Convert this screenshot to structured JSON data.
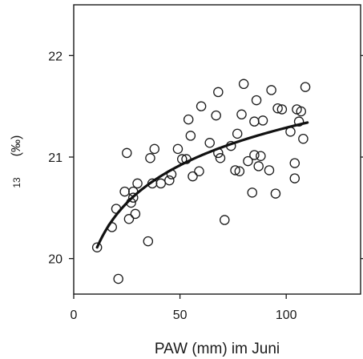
{
  "chart_data": {
    "type": "scatter",
    "title": "",
    "xlabel": "PAW (mm) im Juni",
    "ylabel_parts": {
      "superscript": "13",
      "unit": "(‰)"
    },
    "xlim": [
      0,
      135
    ],
    "ylim": [
      19.65,
      22.5
    ],
    "x_ticks": [
      0,
      50,
      100
    ],
    "y_ticks": [
      20,
      21,
      22
    ],
    "x_tick_labels": [
      "0",
      "50",
      "100"
    ],
    "y_tick_labels": [
      "20",
      "21",
      "22"
    ],
    "grid": false,
    "legend": "none",
    "colors": {
      "marker_stroke": "#1a1a1a",
      "fit_line": "#111111",
      "axis": "#1a1a1a"
    },
    "points": [
      [
        11,
        20.11
      ],
      [
        18,
        20.31
      ],
      [
        20,
        20.49
      ],
      [
        21,
        19.8
      ],
      [
        24,
        20.66
      ],
      [
        25,
        21.04
      ],
      [
        26,
        20.39
      ],
      [
        27,
        20.55
      ],
      [
        28,
        20.6
      ],
      [
        28,
        20.66
      ],
      [
        29,
        20.44
      ],
      [
        30,
        20.74
      ],
      [
        35,
        20.17
      ],
      [
        36,
        20.99
      ],
      [
        37,
        20.74
      ],
      [
        38,
        21.08
      ],
      [
        41,
        20.74
      ],
      [
        45,
        20.77
      ],
      [
        46,
        20.83
      ],
      [
        49,
        21.08
      ],
      [
        51,
        20.98
      ],
      [
        53,
        20.98
      ],
      [
        54,
        21.37
      ],
      [
        55,
        21.21
      ],
      [
        56,
        20.81
      ],
      [
        59,
        20.86
      ],
      [
        60,
        21.5
      ],
      [
        64,
        21.14
      ],
      [
        67,
        21.41
      ],
      [
        68,
        21.64
      ],
      [
        68,
        21.04
      ],
      [
        69,
        20.99
      ],
      [
        71,
        20.38
      ],
      [
        74,
        21.11
      ],
      [
        76,
        20.87
      ],
      [
        77,
        21.23
      ],
      [
        78,
        20.86
      ],
      [
        79,
        21.42
      ],
      [
        80,
        21.72
      ],
      [
        82,
        20.96
      ],
      [
        84,
        20.65
      ],
      [
        85,
        21.02
      ],
      [
        85,
        21.35
      ],
      [
        86,
        21.56
      ],
      [
        87,
        20.91
      ],
      [
        88,
        21.01
      ],
      [
        89,
        21.36
      ],
      [
        92,
        20.87
      ],
      [
        93,
        21.66
      ],
      [
        95,
        20.64
      ],
      [
        96,
        21.48
      ],
      [
        98,
        21.47
      ],
      [
        102,
        21.25
      ],
      [
        104,
        20.94
      ],
      [
        104,
        20.79
      ],
      [
        105,
        21.47
      ],
      [
        106,
        21.35
      ],
      [
        107,
        21.45
      ],
      [
        108,
        21.18
      ],
      [
        109,
        21.69
      ]
    ],
    "fit_curve": {
      "type": "logarithmic",
      "x_range": [
        11,
        110
      ],
      "samples": [
        [
          11,
          20.11
        ],
        [
          15,
          20.32
        ],
        [
          20,
          20.52
        ],
        [
          30,
          20.75
        ],
        [
          40,
          20.91
        ],
        [
          50,
          21.03
        ],
        [
          60,
          21.11
        ],
        [
          70,
          21.18
        ],
        [
          80,
          21.23
        ],
        [
          90,
          21.27
        ],
        [
          100,
          21.31
        ],
        [
          110,
          21.34
        ]
      ]
    }
  }
}
